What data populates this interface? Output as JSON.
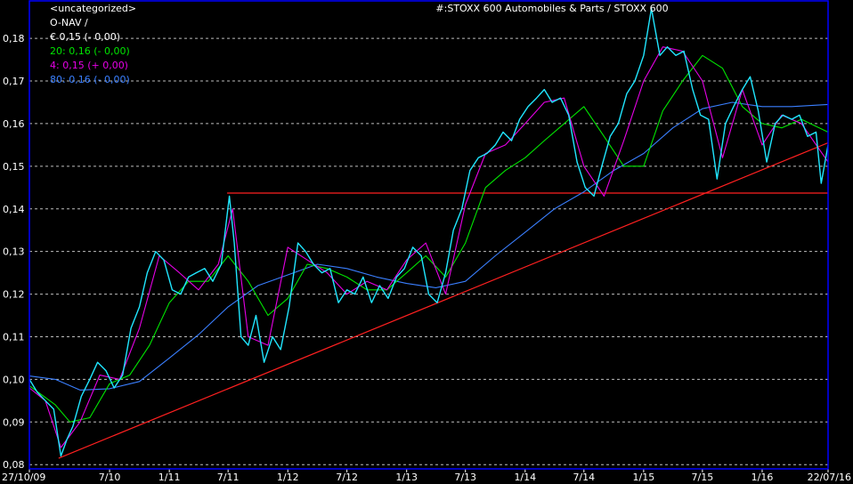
{
  "chart_data": {
    "type": "line",
    "title": "#:STOXX 600 Automobiles & Parts / STOXX 600",
    "category": "<uncategorized>",
    "subtitle": "O-NAV /",
    "price_label": "€ 0,15 (- 0,00)",
    "legend": [
      {
        "name": "20: 0,16 (- 0,00)",
        "color": "#00e600"
      },
      {
        "name": "4: 0,15 (+ 0,00)",
        "color": "#e600e6"
      },
      {
        "name": "80: 0,16 (- 0,00)",
        "color": "#3a7fff"
      }
    ],
    "colors": {
      "price": "#20e6ff",
      "ma20": "#00e600",
      "ma4": "#e600e6",
      "ma80": "#3a7fff",
      "trend": "#ff2020",
      "frame": "#0000ff",
      "grid": "#bdbdbd",
      "text": "#ffffff"
    },
    "x_ticks": [
      "27/10/09",
      "7/10",
      "1/11",
      "7/11",
      "1/12",
      "7/12",
      "1/13",
      "7/13",
      "1/14",
      "7/14",
      "1/15",
      "7/15",
      "1/16",
      "22/07/16"
    ],
    "x_tick_dates": [
      "2009-10-27",
      "2010-07-01",
      "2011-01-01",
      "2011-07-01",
      "2012-01-01",
      "2012-07-01",
      "2013-01-01",
      "2013-07-01",
      "2014-01-01",
      "2014-07-01",
      "2015-01-01",
      "2015-07-01",
      "2016-01-01",
      "2016-07-22"
    ],
    "y_ticks": [
      "0,08",
      "0,09",
      "0,10",
      "0,11",
      "0,12",
      "0,13",
      "0,14",
      "0,15",
      "0,16",
      "0,17",
      "0,18"
    ],
    "y_tick_values": [
      0.08,
      0.09,
      0.1,
      0.11,
      0.12,
      0.13,
      0.14,
      0.15,
      0.16,
      0.17,
      0.18
    ],
    "xlim": [
      "2009-10-27",
      "2016-07-22"
    ],
    "ylim": [
      0.079,
      0.189
    ],
    "grid": true,
    "series": [
      {
        "name": "20: 0,16 (- 0,00)",
        "key": "ma20",
        "x": [
          "2009-10-27",
          "2010-01-15",
          "2010-03-01",
          "2010-05-01",
          "2010-07-01",
          "2010-09-01",
          "2010-11-01",
          "2011-01-01",
          "2011-03-01",
          "2011-05-01",
          "2011-07-01",
          "2011-09-01",
          "2011-11-01",
          "2012-01-01",
          "2012-03-01",
          "2012-05-01",
          "2012-07-01",
          "2012-09-01",
          "2012-11-01",
          "2013-01-01",
          "2013-03-01",
          "2013-05-01",
          "2013-07-01",
          "2013-09-01",
          "2013-11-01",
          "2014-01-01",
          "2014-03-01",
          "2014-05-01",
          "2014-07-01",
          "2014-09-01",
          "2014-11-01",
          "2015-01-01",
          "2015-03-01",
          "2015-05-01",
          "2015-07-01",
          "2015-09-01",
          "2015-11-01",
          "2016-01-01",
          "2016-03-01",
          "2016-05-01",
          "2016-07-22"
        ],
        "y": [
          0.0985,
          0.094,
          0.09,
          0.091,
          0.099,
          0.101,
          0.108,
          0.118,
          0.123,
          0.123,
          0.129,
          0.123,
          0.115,
          0.119,
          0.127,
          0.126,
          0.124,
          0.121,
          0.121,
          0.125,
          0.129,
          0.124,
          0.132,
          0.145,
          0.149,
          0.152,
          0.156,
          0.16,
          0.164,
          0.157,
          0.15,
          0.15,
          0.163,
          0.17,
          0.176,
          0.173,
          0.164,
          0.16,
          0.159,
          0.161,
          0.158
        ]
      },
      {
        "name": "80: 0,16 (- 0,00)",
        "key": "ma80",
        "x": [
          "2009-10-27",
          "2010-01-15",
          "2010-04-01",
          "2010-07-01",
          "2010-10-01",
          "2011-01-01",
          "2011-04-01",
          "2011-07-01",
          "2011-10-01",
          "2012-01-01",
          "2012-04-01",
          "2012-07-01",
          "2012-10-01",
          "2013-01-01",
          "2013-04-01",
          "2013-07-01",
          "2013-10-01",
          "2014-01-01",
          "2014-04-01",
          "2014-07-01",
          "2014-10-01",
          "2015-01-01",
          "2015-04-01",
          "2015-07-01",
          "2015-10-01",
          "2016-01-01",
          "2016-04-01",
          "2016-07-22"
        ],
        "y": [
          0.1008,
          0.1,
          0.0975,
          0.0978,
          0.0995,
          0.105,
          0.1105,
          0.117,
          0.122,
          0.1245,
          0.127,
          0.126,
          0.124,
          0.1225,
          0.1215,
          0.123,
          0.129,
          0.1345,
          0.14,
          0.144,
          0.149,
          0.153,
          0.159,
          0.1635,
          0.165,
          0.164,
          0.164,
          0.1645
        ]
      },
      {
        "name": "4: 0,15 (+ 0,00)",
        "key": "ma4",
        "x": [
          "2009-10-27",
          "2009-12-15",
          "2010-02-01",
          "2010-04-01",
          "2010-06-01",
          "2010-08-01",
          "2010-10-01",
          "2010-12-01",
          "2011-02-01",
          "2011-04-01",
          "2011-06-01",
          "2011-07-15",
          "2011-09-01",
          "2011-11-01",
          "2012-01-01",
          "2012-03-01",
          "2012-05-01",
          "2012-07-01",
          "2012-09-01",
          "2012-11-01",
          "2013-01-01",
          "2013-03-01",
          "2013-05-01",
          "2013-07-01",
          "2013-09-01",
          "2013-11-01",
          "2014-01-01",
          "2014-03-01",
          "2014-05-01",
          "2014-07-01",
          "2014-09-01",
          "2014-11-01",
          "2015-01-01",
          "2015-03-01",
          "2015-05-01",
          "2015-07-01",
          "2015-09-01",
          "2015-11-01",
          "2016-01-01",
          "2016-03-01",
          "2016-05-01",
          "2016-07-22"
        ],
        "y": [
          0.098,
          0.095,
          0.084,
          0.09,
          0.101,
          0.1,
          0.112,
          0.129,
          0.125,
          0.121,
          0.127,
          0.14,
          0.11,
          0.108,
          0.131,
          0.128,
          0.125,
          0.12,
          0.123,
          0.121,
          0.128,
          0.132,
          0.12,
          0.141,
          0.153,
          0.155,
          0.16,
          0.165,
          0.166,
          0.15,
          0.143,
          0.156,
          0.17,
          0.178,
          0.177,
          0.17,
          0.152,
          0.168,
          0.155,
          0.162,
          0.16,
          0.151
        ]
      },
      {
        "name": "O-NAV",
        "key": "price",
        "x": [
          "2009-10-27",
          "2009-11-20",
          "2009-12-15",
          "2010-01-10",
          "2010-02-01",
          "2010-02-20",
          "2010-03-10",
          "2010-04-05",
          "2010-05-01",
          "2010-05-25",
          "2010-06-20",
          "2010-07-15",
          "2010-08-10",
          "2010-09-05",
          "2010-10-01",
          "2010-10-25",
          "2010-11-20",
          "2010-12-15",
          "2011-01-10",
          "2011-02-05",
          "2011-03-01",
          "2011-03-25",
          "2011-04-20",
          "2011-05-15",
          "2011-06-10",
          "2011-07-05",
          "2011-07-20",
          "2011-08-10",
          "2011-09-01",
          "2011-09-25",
          "2011-10-20",
          "2011-11-15",
          "2011-12-10",
          "2012-01-05",
          "2012-02-01",
          "2012-02-25",
          "2012-03-20",
          "2012-04-15",
          "2012-05-10",
          "2012-06-05",
          "2012-07-01",
          "2012-07-25",
          "2012-08-20",
          "2012-09-15",
          "2012-10-10",
          "2012-11-05",
          "2012-12-01",
          "2012-12-25",
          "2013-01-20",
          "2013-02-15",
          "2013-03-10",
          "2013-04-05",
          "2013-05-01",
          "2013-05-25",
          "2013-06-20",
          "2013-07-15",
          "2013-08-10",
          "2013-09-05",
          "2013-10-01",
          "2013-10-25",
          "2013-11-20",
          "2013-12-15",
          "2014-01-10",
          "2014-02-05",
          "2014-03-01",
          "2014-03-25",
          "2014-04-20",
          "2014-05-15",
          "2014-06-10",
          "2014-07-05",
          "2014-08-01",
          "2014-08-25",
          "2014-09-20",
          "2014-10-15",
          "2014-11-10",
          "2014-12-05",
          "2015-01-01",
          "2015-01-25",
          "2015-02-20",
          "2015-03-15",
          "2015-04-10",
          "2015-05-05",
          "2015-06-01",
          "2015-06-25",
          "2015-07-20",
          "2015-08-15",
          "2015-09-10",
          "2015-10-05",
          "2015-11-01",
          "2015-11-25",
          "2015-12-20",
          "2016-01-15",
          "2016-02-10",
          "2016-03-05",
          "2016-04-01",
          "2016-04-25",
          "2016-05-20",
          "2016-06-15",
          "2016-07-01",
          "2016-07-22"
        ],
        "y": [
          0.1,
          0.097,
          0.095,
          0.093,
          0.082,
          0.086,
          0.089,
          0.096,
          0.1,
          0.104,
          0.102,
          0.098,
          0.101,
          0.112,
          0.117,
          0.125,
          0.13,
          0.128,
          0.121,
          0.12,
          0.124,
          0.125,
          0.126,
          0.123,
          0.127,
          0.143,
          0.132,
          0.11,
          0.108,
          0.115,
          0.104,
          0.11,
          0.107,
          0.117,
          0.132,
          0.13,
          0.127,
          0.125,
          0.126,
          0.118,
          0.121,
          0.12,
          0.124,
          0.118,
          0.122,
          0.119,
          0.124,
          0.126,
          0.131,
          0.129,
          0.12,
          0.118,
          0.125,
          0.135,
          0.14,
          0.149,
          0.152,
          0.153,
          0.155,
          0.158,
          0.156,
          0.161,
          0.164,
          0.166,
          0.168,
          0.165,
          0.166,
          0.162,
          0.151,
          0.145,
          0.143,
          0.15,
          0.157,
          0.16,
          0.167,
          0.17,
          0.176,
          0.187,
          0.176,
          0.178,
          0.176,
          0.177,
          0.168,
          0.162,
          0.161,
          0.147,
          0.16,
          0.164,
          0.168,
          0.171,
          0.163,
          0.151,
          0.16,
          0.162,
          0.161,
          0.162,
          0.157,
          0.158,
          0.146,
          0.155
        ]
      }
    ],
    "lines": [
      {
        "kind": "horizontal",
        "key": "support",
        "x": [
          "2011-06-28",
          "2016-07-22"
        ],
        "y": [
          0.1437,
          0.1437
        ]
      },
      {
        "kind": "trend",
        "key": "trend",
        "x": [
          "2010-01-25",
          "2016-07-22"
        ],
        "y": [
          0.0815,
          0.1555
        ]
      }
    ]
  }
}
